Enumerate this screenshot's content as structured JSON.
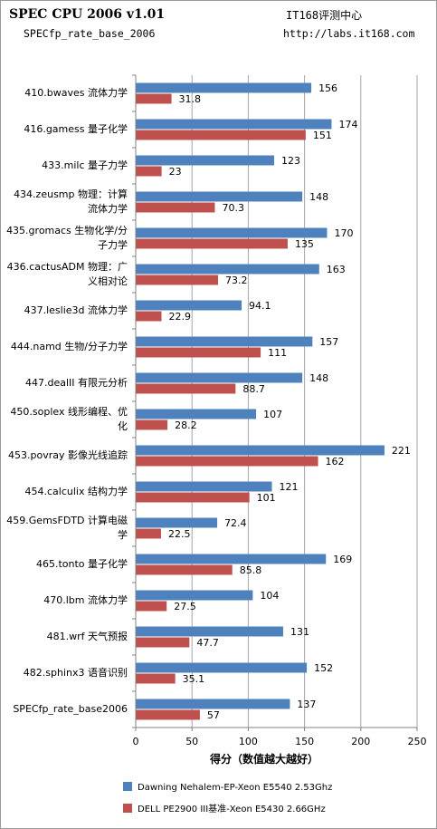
{
  "header": {
    "title": "SPEC CPU 2006 v1.01",
    "subtitle": "SPECfp_rate_base_2006",
    "org": "IT168评测中心",
    "url": "http://labs.it168.com"
  },
  "colors": {
    "series1": "#4f81bd",
    "series2": "#c0504d",
    "grid": "#a6a6a6",
    "axis": "#808080"
  },
  "chart_data": {
    "type": "bar",
    "orientation": "horizontal",
    "title": "SPEC CPU 2006 v1.01",
    "subtitle": "SPECfp_rate_base_2006",
    "xlabel": "得分（数值越大越好）",
    "ylabel": "",
    "xlim": [
      0,
      250
    ],
    "xticks": [
      0,
      50,
      100,
      150,
      200,
      250
    ],
    "grid": "vertical",
    "legend_position": "bottom",
    "categories": [
      "410.bwaves 流体力学",
      "416.gamess 量子化学",
      "433.milc 量子力学",
      "434.zeusmp 物理：计算流体力学",
      "435.gromacs 生物化学/分子力学",
      "436.cactusADM 物理：广义相对论",
      "437.leslie3d 流体力学",
      "444.namd 生物/分子力学",
      "447.dealII 有限元分析",
      "450.soplex 线形编程、优化",
      "453.povray 影像光线追踪",
      "454.calculix 结构力学",
      "459.GemsFDTD 计算电磁学",
      "465.tonto 量子化学",
      "470.lbm 流体力学",
      "481.wrf 天气预报",
      "482.sphinx3 语音识别",
      "SPECfp_rate_base2006"
    ],
    "series": [
      {
        "name": "Dawning Nehalem-EP-Xeon  E5540 2.53Ghz",
        "values": [
          156,
          174,
          123,
          148,
          170,
          163,
          94.1,
          157,
          148,
          107,
          221,
          121,
          72.4,
          169,
          104,
          131,
          152,
          137
        ]
      },
      {
        "name": "DELL PE2900 III基准-Xeon  E5430 2.66GHz",
        "values": [
          31.8,
          151,
          23,
          70.3,
          135,
          73.2,
          22.9,
          111,
          88.7,
          28.2,
          162,
          101,
          22.5,
          85.8,
          27.5,
          47.7,
          35.1,
          57
        ]
      }
    ]
  }
}
